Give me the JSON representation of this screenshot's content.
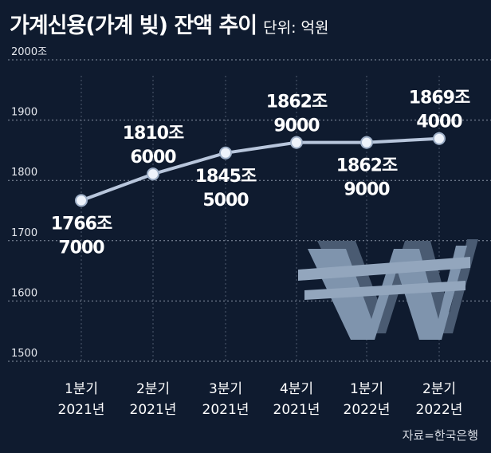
{
  "header": {
    "title": "가계신용(가계 빚) 잔액 추이",
    "unit": "단위: 억원"
  },
  "source": "자료=한국은행",
  "colors": {
    "background": "#0f1b2f",
    "line": "#b8c6dc",
    "point": "#eef3fb",
    "grid": "#8a94a5",
    "text": "#ffffff",
    "won_symbol": "#7f94ad"
  },
  "icons": {
    "decoration": "won-currency-symbol"
  },
  "chart_data": {
    "type": "line",
    "title": "가계신용(가계 빚) 잔액 추이",
    "unit": "단위: 억원",
    "categories": [
      [
        "1분기",
        "2021년"
      ],
      [
        "2분기",
        "2021년"
      ],
      [
        "3분기",
        "2021년"
      ],
      [
        "4분기",
        "2021년"
      ],
      [
        "1분기",
        "2022년"
      ],
      [
        "2분기",
        "2022년"
      ]
    ],
    "values": [
      1766.7,
      1810.6,
      1845.5,
      1862.9,
      1862.9,
      1869.4
    ],
    "data_labels": [
      [
        "1766조",
        "7000"
      ],
      [
        "1810조",
        "6000"
      ],
      [
        "1845조",
        "5000"
      ],
      [
        "1862조",
        "9000"
      ],
      [
        "1862조",
        "9000"
      ],
      [
        "1869조",
        "4000"
      ]
    ],
    "label_position": [
      "below",
      "above",
      "below",
      "above",
      "below",
      "above"
    ],
    "yticks": [
      "2000조",
      "1900",
      "1800",
      "1700",
      "1600",
      "1500"
    ],
    "ylim": [
      1500,
      2000
    ],
    "grid": true,
    "source": "자료=한국은행"
  }
}
